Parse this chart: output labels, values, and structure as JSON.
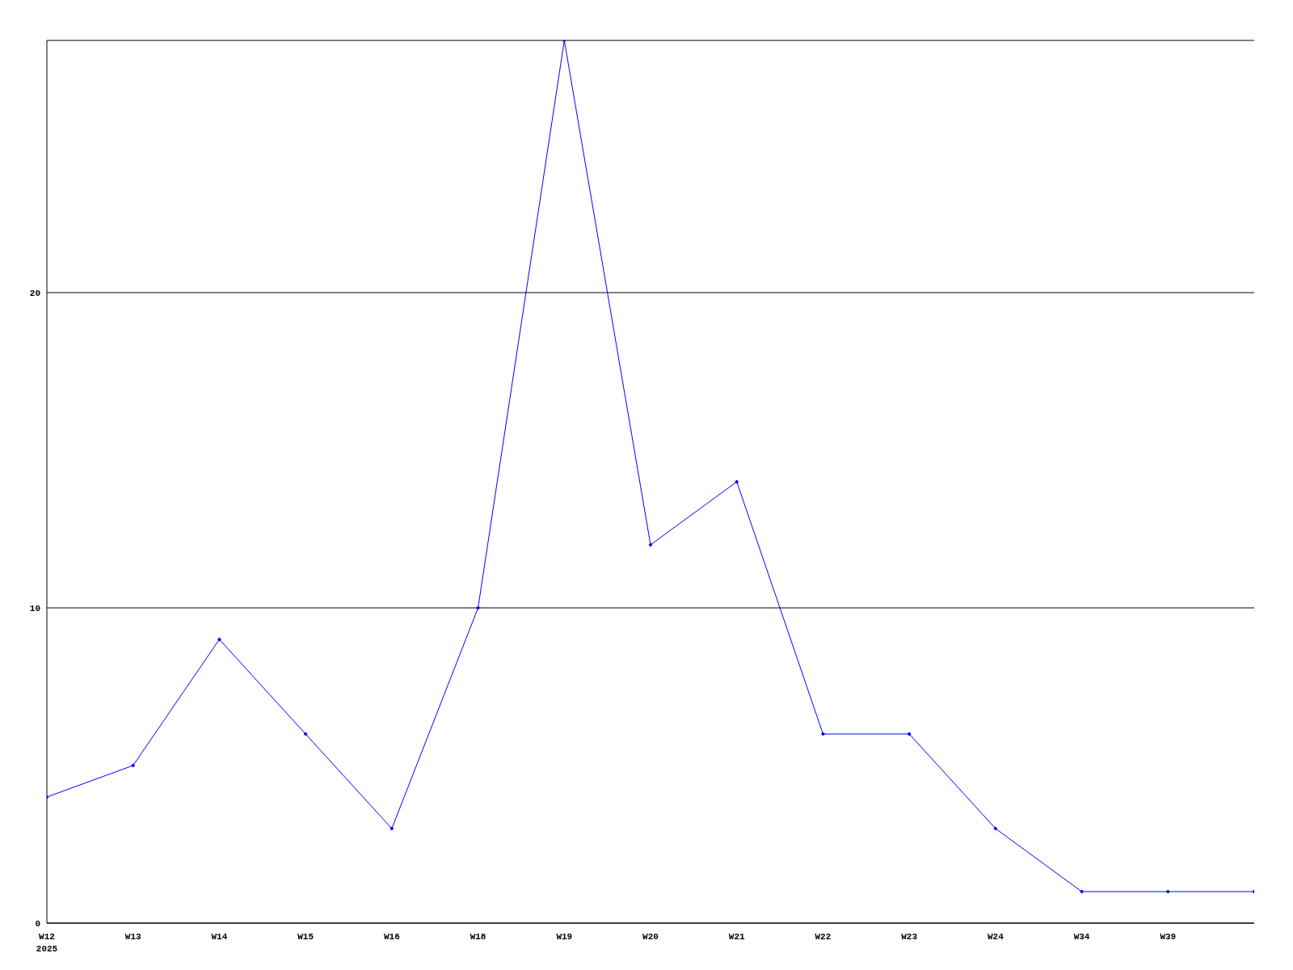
{
  "chart_data": {
    "type": "line",
    "categories": [
      "W12\n2025",
      "W13",
      "W14",
      "W15",
      "W16",
      "W18",
      "W19",
      "W20",
      "W21",
      "W22",
      "W23",
      "W24",
      "W34",
      "W39",
      null
    ],
    "series": [
      {
        "color": "#0000ff",
        "values": [
          4,
          5,
          9,
          6,
          3,
          10,
          28,
          12,
          14,
          6,
          6,
          3,
          1,
          1,
          1
        ]
      }
    ],
    "ylim": [
      0,
      28
    ],
    "yticks": [
      0,
      10,
      20
    ],
    "grid": "y",
    "legend": false,
    "marker": "diamond",
    "line_style": "solid"
  }
}
